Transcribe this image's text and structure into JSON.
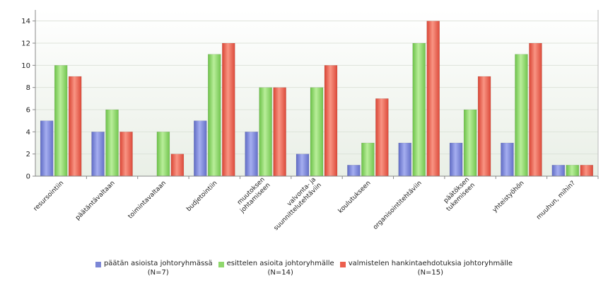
{
  "chart_data": {
    "type": "bar",
    "categories": [
      [
        "resursointiin"
      ],
      [
        "päätäntävaltaan"
      ],
      [
        "toimintavaltaan"
      ],
      [
        "budjetointiin"
      ],
      [
        "muutoksen",
        "johtamiseen"
      ],
      [
        "valvonta- ja",
        "suunnittelutehtäviin"
      ],
      [
        "koulutukseen"
      ],
      [
        "organisointitehtäviin"
      ],
      [
        "päätöksen",
        "tukemiseen"
      ],
      [
        "yhteistyöhön"
      ],
      [
        "muuhun, mihin?"
      ]
    ],
    "series": [
      {
        "name": "päätän asioista johtoryhmässä",
        "name_sub": "(N=7)",
        "color": "#7b86d6",
        "values": [
          5,
          4,
          0,
          5,
          4,
          2,
          1,
          3,
          3,
          3,
          1
        ]
      },
      {
        "name": "esittelen asioita johtoryhmälle",
        "name_sub": "(N=14)",
        "color": "#8fd76d",
        "values": [
          10,
          6,
          4,
          11,
          8,
          8,
          3,
          12,
          6,
          11,
          1
        ]
      },
      {
        "name": "valmistelen hankintaehdotuksia johtoryhmälle",
        "name_sub": "(N=15)",
        "color": "#ec5f4e",
        "values": [
          9,
          4,
          2,
          12,
          8,
          10,
          7,
          14,
          9,
          12,
          1
        ]
      }
    ],
    "ylim": [
      0,
      15
    ],
    "yticks": [
      0,
      2,
      4,
      6,
      8,
      10,
      12,
      14
    ],
    "grid": true,
    "legend_position": "bottom",
    "title": "",
    "xlabel": "",
    "ylabel": ""
  }
}
